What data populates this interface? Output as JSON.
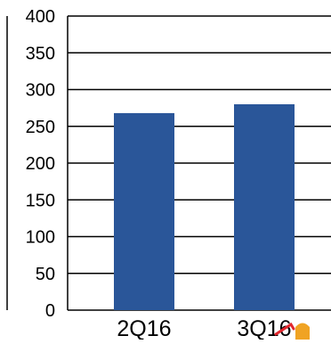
{
  "chart_data": {
    "type": "bar",
    "categories": [
      "2Q16",
      "3Q16"
    ],
    "values": [
      268,
      280
    ],
    "title": "",
    "xlabel": "",
    "ylabel": "",
    "ylim": [
      0,
      400
    ],
    "yticks": [
      "0",
      "50",
      "100",
      "150",
      "200",
      "250",
      "300",
      "350",
      "400"
    ],
    "grid": true,
    "legend": "none",
    "colors": {
      "bar": "#2a5699",
      "gridline": "#000000",
      "axis_text": "#000000"
    }
  }
}
